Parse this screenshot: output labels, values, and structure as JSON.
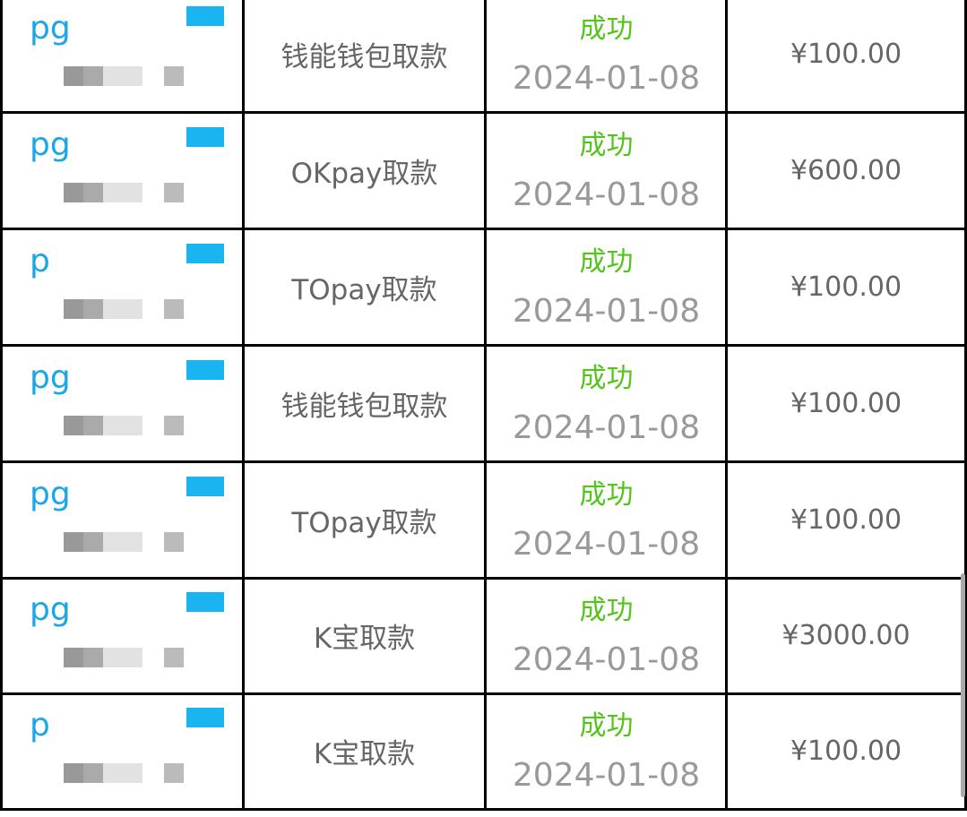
{
  "colors": {
    "success": "#52c41a",
    "account": "#1aa7e8",
    "text": "#666666",
    "date": "#999999"
  },
  "rows": [
    {
      "account": "pg",
      "method": "钱能钱包取款",
      "status": "成功",
      "date": "2024-01-08",
      "amount": "¥100.00"
    },
    {
      "account": "pg",
      "method": "OKpay取款",
      "status": "成功",
      "date": "2024-01-08",
      "amount": "¥600.00"
    },
    {
      "account": "p",
      "method": "TOpay取款",
      "status": "成功",
      "date": "2024-01-08",
      "amount": "¥100.00"
    },
    {
      "account": "pg",
      "method": "钱能钱包取款",
      "status": "成功",
      "date": "2024-01-08",
      "amount": "¥100.00"
    },
    {
      "account": "pg",
      "method": "TOpay取款",
      "status": "成功",
      "date": "2024-01-08",
      "amount": "¥100.00"
    },
    {
      "account": "pg",
      "method": "K宝取款",
      "status": "成功",
      "date": "2024-01-08",
      "amount": "¥3000.00"
    },
    {
      "account": "p",
      "method": "K宝取款",
      "status": "成功",
      "date": "2024-01-08",
      "amount": "¥100.00"
    }
  ]
}
